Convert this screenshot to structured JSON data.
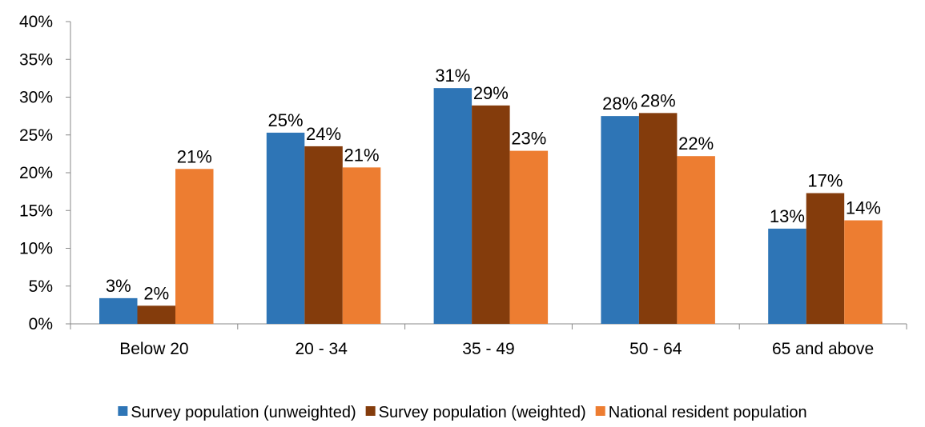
{
  "chart_data": {
    "type": "bar",
    "title": "",
    "xlabel": "",
    "ylabel": "",
    "categories": [
      "Below 20",
      "20 - 34",
      "35 - 49",
      "50 - 64",
      "65 and above"
    ],
    "ylim": [
      0,
      40
    ],
    "y_ticks": [
      "0%",
      "5%",
      "10%",
      "15%",
      "20%",
      "25%",
      "30%",
      "35%",
      "40%"
    ],
    "y_tick_values": [
      0,
      5,
      10,
      15,
      20,
      25,
      30,
      35,
      40
    ],
    "grid": false,
    "legend_position": "bottom",
    "series": [
      {
        "name": "Survey population (unweighted)",
        "color": "#2E75B6",
        "values": [
          3.4,
          25.3,
          31.2,
          27.5,
          12.6
        ],
        "labels": [
          "3%",
          "25%",
          "31%",
          "28%",
          "13%"
        ]
      },
      {
        "name": "Survey population (weighted)",
        "color": "#843C0C",
        "values": [
          2.4,
          23.5,
          28.9,
          27.9,
          17.3
        ],
        "labels": [
          "2%",
          "24%",
          "29%",
          "28%",
          "17%"
        ]
      },
      {
        "name": "National resident population",
        "color": "#ED7D31",
        "values": [
          20.5,
          20.7,
          22.9,
          22.2,
          13.7
        ],
        "labels": [
          "21%",
          "21%",
          "23%",
          "22%",
          "14%"
        ]
      }
    ]
  }
}
